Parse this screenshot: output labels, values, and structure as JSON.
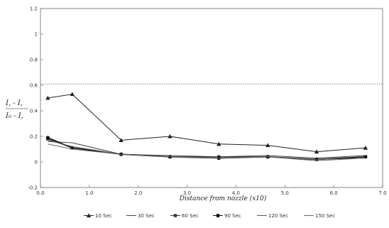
{
  "chart_data": {
    "type": "line",
    "title": "",
    "xlabel": "Distance from nozzle (x10)",
    "ylabel_line1": "I, - I,",
    "ylabel_line2": "I₀ - I,",
    "xlim": [
      0.0,
      7.0
    ],
    "ylim": [
      -0.2,
      1.2
    ],
    "x_ticks": [
      0.0,
      1.0,
      2.0,
      3.0,
      4.0,
      5.0,
      6.0,
      7.0
    ],
    "x_tick_labels": [
      "0.0",
      "1.0",
      "2.0",
      "3.0",
      "4.0",
      "5.0",
      "6.0",
      "7.0"
    ],
    "y_ticks": [
      -0.2,
      0,
      0.2,
      0.4,
      0.6,
      0.8,
      1,
      1.2
    ],
    "y_tick_labels": [
      "-0.2",
      "0",
      "0.2",
      "0.4",
      "0.6",
      "0.8",
      "1",
      "1.2"
    ],
    "reference_line_y": 0.61,
    "grid": false,
    "legend_position": "bottom",
    "x": [
      0.15,
      0.65,
      1.65,
      2.65,
      3.65,
      4.65,
      5.65,
      6.65
    ],
    "series": [
      {
        "name": "10 Sec",
        "marker": "triangle",
        "color": "#222222",
        "values": [
          0.5,
          0.53,
          0.17,
          0.2,
          0.14,
          0.13,
          0.08,
          0.11
        ]
      },
      {
        "name": "30 Sec",
        "marker": "none",
        "color": "#444444",
        "values": [
          0.16,
          0.15,
          0.06,
          0.05,
          0.04,
          0.05,
          0.03,
          0.05
        ]
      },
      {
        "name": "60 Sec",
        "marker": "square",
        "color": "#333333",
        "values": [
          0.18,
          0.11,
          0.06,
          0.04,
          0.04,
          0.04,
          0.02,
          0.04
        ]
      },
      {
        "name": "90 Sec",
        "marker": "circle",
        "color": "#111111",
        "values": [
          0.19,
          0.11,
          0.06,
          0.04,
          0.03,
          0.04,
          0.02,
          0.04
        ]
      },
      {
        "name": "120 Sec",
        "marker": "none",
        "color": "#555555",
        "values": [
          0.17,
          0.12,
          0.06,
          0.04,
          0.03,
          0.04,
          0.02,
          0.03
        ]
      },
      {
        "name": "150 Sec",
        "marker": "none",
        "color": "#666666",
        "values": [
          0.14,
          0.1,
          0.06,
          0.04,
          0.03,
          0.04,
          0.01,
          0.03
        ]
      }
    ]
  }
}
